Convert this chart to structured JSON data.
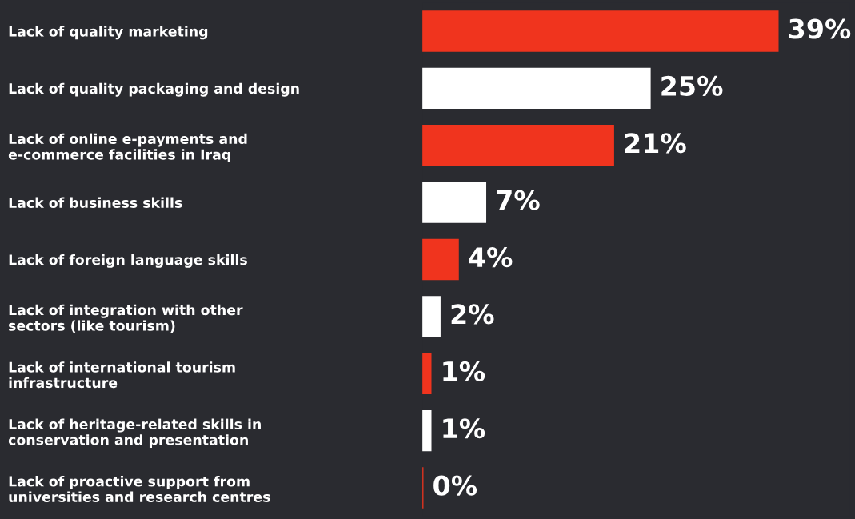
{
  "chart_data": {
    "type": "bar",
    "orientation": "horizontal",
    "categories": [
      "Lack of quality marketing",
      "Lack of quality packaging and design",
      "Lack of online e-payments and\ne-commerce facilities in Iraq",
      "Lack of business skills",
      "Lack of foreign language skills",
      "Lack of integration with other\nsectors (like tourism)",
      "Lack of international tourism\ninfrastructure",
      "Lack of heritage-related skills in\nconservation and presentation",
      "Lack of proactive support from\nuniversities and research centres"
    ],
    "values": [
      39,
      25,
      21,
      7,
      4,
      2,
      1,
      1,
      0
    ],
    "colors": [
      "#f0341e",
      "#ffffff",
      "#f0341e",
      "#ffffff",
      "#f0341e",
      "#ffffff",
      "#f0341e",
      "#ffffff",
      "#f0341e"
    ],
    "value_labels": [
      "39%",
      "25%",
      "21%",
      "7%",
      "4%",
      "2%",
      "1%",
      "1%",
      "0%"
    ],
    "grid": false,
    "legend": false
  }
}
